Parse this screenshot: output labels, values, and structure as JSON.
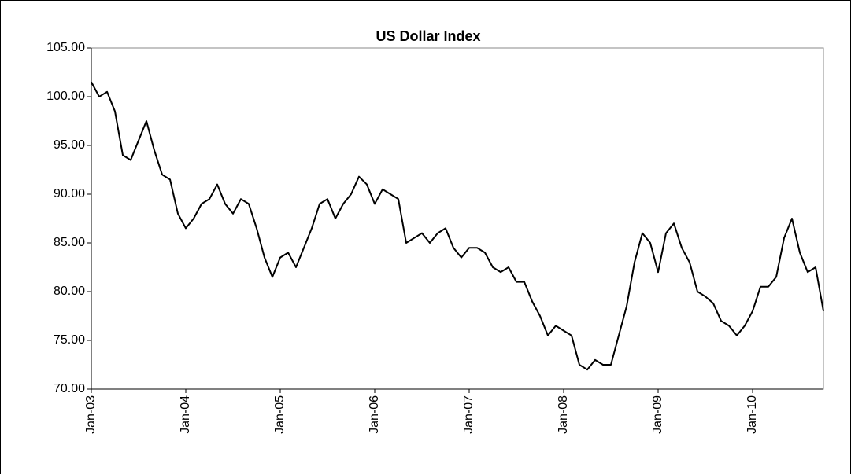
{
  "chart_data": {
    "type": "line",
    "title": "US Dollar Index",
    "x": [
      "2003-01",
      "2003-02",
      "2003-03",
      "2003-04",
      "2003-05",
      "2003-06",
      "2003-07",
      "2003-08",
      "2003-09",
      "2003-10",
      "2003-11",
      "2003-12",
      "2004-01",
      "2004-02",
      "2004-03",
      "2004-04",
      "2004-05",
      "2004-06",
      "2004-07",
      "2004-08",
      "2004-09",
      "2004-10",
      "2004-11",
      "2004-12",
      "2005-01",
      "2005-02",
      "2005-03",
      "2005-04",
      "2005-05",
      "2005-06",
      "2005-07",
      "2005-08",
      "2005-09",
      "2005-10",
      "2005-11",
      "2005-12",
      "2006-01",
      "2006-02",
      "2006-03",
      "2006-04",
      "2006-05",
      "2006-06",
      "2006-07",
      "2006-08",
      "2006-09",
      "2006-10",
      "2006-11",
      "2006-12",
      "2007-01",
      "2007-02",
      "2007-03",
      "2007-04",
      "2007-05",
      "2007-06",
      "2007-07",
      "2007-08",
      "2007-09",
      "2007-10",
      "2007-11",
      "2007-12",
      "2008-01",
      "2008-02",
      "2008-03",
      "2008-04",
      "2008-05",
      "2008-06",
      "2008-07",
      "2008-08",
      "2008-09",
      "2008-10",
      "2008-11",
      "2008-12",
      "2009-01",
      "2009-02",
      "2009-03",
      "2009-04",
      "2009-05",
      "2009-06",
      "2009-07",
      "2009-08",
      "2009-09",
      "2009-10",
      "2009-11",
      "2009-12",
      "2010-01",
      "2010-02",
      "2010-03",
      "2010-04",
      "2010-05",
      "2010-06",
      "2010-07",
      "2010-08",
      "2010-09",
      "2010-10"
    ],
    "series": [
      {
        "name": "US Dollar Index",
        "color": "#000000",
        "values": [
          101.5,
          100,
          100.5,
          98.5,
          94,
          93.5,
          95.5,
          97.5,
          94.5,
          92,
          91.5,
          88,
          86.5,
          87.5,
          89,
          89.5,
          91,
          89,
          88,
          89.5,
          89,
          86.5,
          83.5,
          81.5,
          83.5,
          84,
          82.5,
          84.5,
          86.5,
          89,
          89.5,
          87.5,
          89,
          90,
          91.8,
          91,
          89,
          90.5,
          90,
          89.5,
          85,
          85.5,
          86,
          85,
          86,
          86.5,
          84.5,
          83.5,
          84.5,
          84.5,
          84,
          82.5,
          82,
          82.5,
          81,
          81,
          79,
          77.5,
          75.5,
          76.5,
          76,
          75.5,
          72.5,
          72,
          73,
          72.5,
          72.5,
          75.5,
          78.5,
          83,
          86,
          85,
          82,
          86,
          87,
          84.5,
          83,
          80,
          79.5,
          78.8,
          77,
          76.5,
          75.5,
          76.5,
          78,
          80.5,
          80.5,
          81.5,
          85.5,
          87.5,
          84,
          82,
          82.5,
          78
        ]
      }
    ],
    "xlim": [
      "2003-01",
      "2010-10"
    ],
    "xticks": [
      {
        "value": "2003-01",
        "label": "Jan-03"
      },
      {
        "value": "2004-01",
        "label": "Jan-04"
      },
      {
        "value": "2005-01",
        "label": "Jan-05"
      },
      {
        "value": "2006-01",
        "label": "Jan-06"
      },
      {
        "value": "2007-01",
        "label": "Jan-07"
      },
      {
        "value": "2008-01",
        "label": "Jan-08"
      },
      {
        "value": "2009-01",
        "label": "Jan-09"
      },
      {
        "value": "2010-01",
        "label": "Jan-10"
      }
    ],
    "ylim": [
      70,
      105
    ],
    "yticks": [
      {
        "value": 70,
        "label": "70.00"
      },
      {
        "value": 75,
        "label": "75.00"
      },
      {
        "value": 80,
        "label": "80.00"
      },
      {
        "value": 85,
        "label": "85.00"
      },
      {
        "value": 90,
        "label": "90.00"
      },
      {
        "value": 95,
        "label": "95.00"
      },
      {
        "value": 100,
        "label": "100.00"
      },
      {
        "value": 105,
        "label": "105.00"
      }
    ],
    "grid": false
  }
}
